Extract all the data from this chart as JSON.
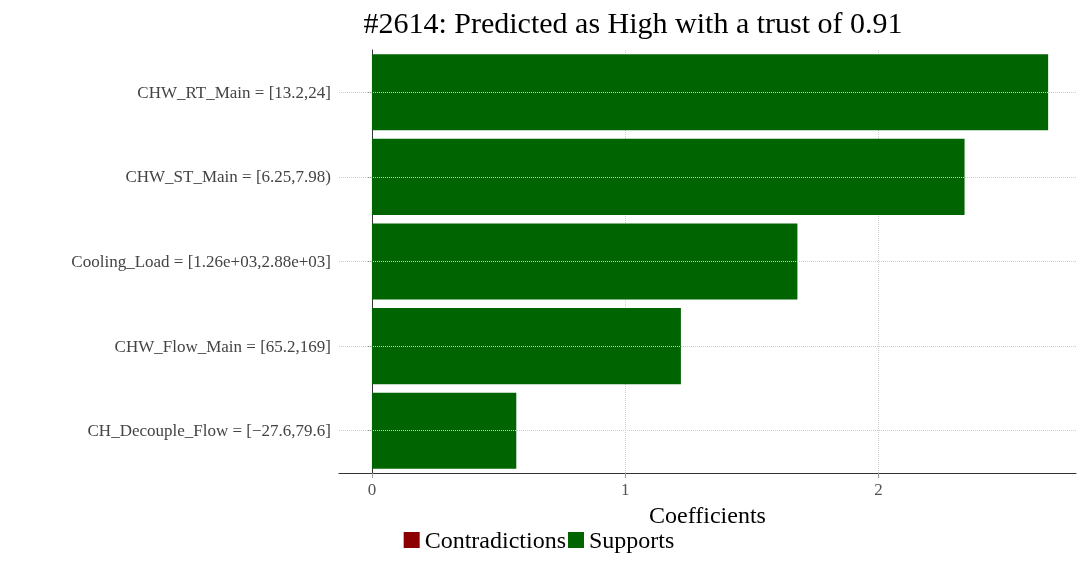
{
  "chart_data": {
    "type": "bar",
    "orientation": "horizontal",
    "title": "#2614: Predicted as High with a trust of 0.91",
    "xlabel": "Coefficients",
    "categories": [
      "CHW_RT_Main = [13.2,24]",
      "CHW_ST_Main = [6.25,7.98)",
      "Cooling_Load = [1.26e+03,2.88e+03]",
      "CHW_Flow_Main = [65.2,169]",
      "CH_Decouple_Flow = [−27.6,79.6]"
    ],
    "series": [
      {
        "name": "Contradictions",
        "color": "#8b0000",
        "values": [
          null,
          null,
          null,
          null,
          null
        ]
      },
      {
        "name": "Supports",
        "color": "#006400",
        "values": [
          2.67,
          2.34,
          1.68,
          1.22,
          0.57
        ]
      }
    ],
    "xlim": [
      -0.13,
      2.78
    ],
    "xticks": [
      0,
      1,
      2
    ],
    "grid": true,
    "legend": "bottom"
  }
}
